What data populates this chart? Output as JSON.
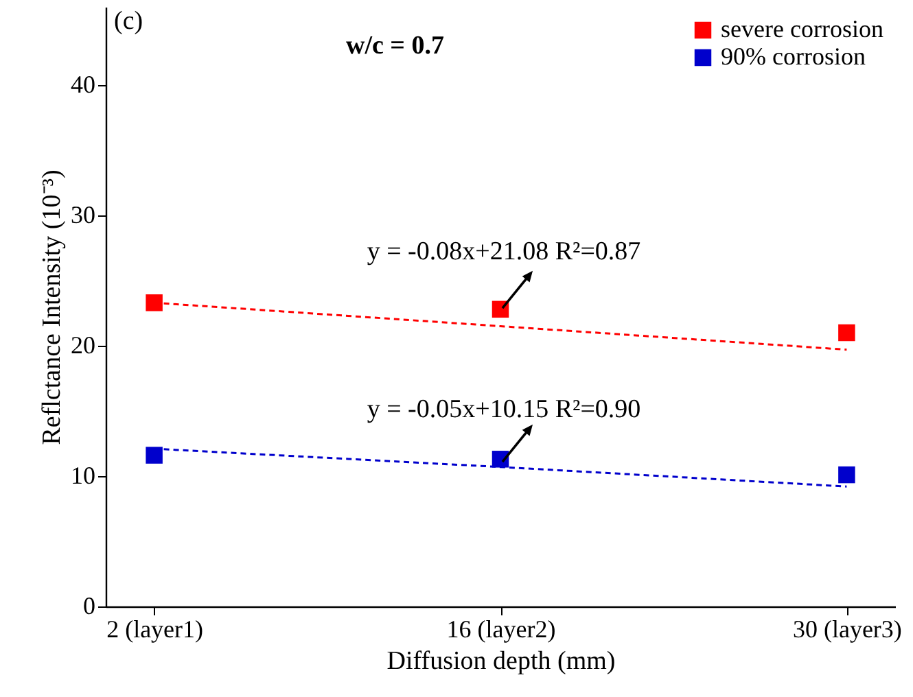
{
  "chart_data": {
    "type": "scatter",
    "xlabel": "Diffusion depth (mm)",
    "ylabel": "Reflctance Intensity (10⁻³)",
    "categories": [
      "2 (layer1)",
      "16 (layer2)",
      "30 (layer3)"
    ],
    "ylim": [
      0,
      46
    ],
    "yticks": [
      0,
      10,
      20,
      30,
      40
    ],
    "series": [
      {
        "name": "severe corrosion",
        "color": "#ff0000",
        "values": [
          23.3,
          22.8,
          21.0
        ]
      },
      {
        "name": "90% corrosion",
        "color": "#0000cc",
        "values": [
          11.6,
          11.3,
          10.1
        ]
      },
      {
        "type": "line",
        "color": "#ff0000",
        "line_style": "dashed",
        "marker": "none",
        "values": [
          23.3,
          21.5,
          19.7
        ]
      },
      {
        "type": "line",
        "color": "#0000cc",
        "line_style": "dashed",
        "marker": "none",
        "values": [
          12.1,
          10.7,
          9.2
        ]
      }
    ],
    "annotations": [
      "(c)",
      "w/c = 0.7",
      "y = -0.08x+21.08  R²=0.87",
      "y = -0.05x+10.15  R²=0.90"
    ],
    "marker": "square",
    "legend": "top right",
    "grid": false
  }
}
